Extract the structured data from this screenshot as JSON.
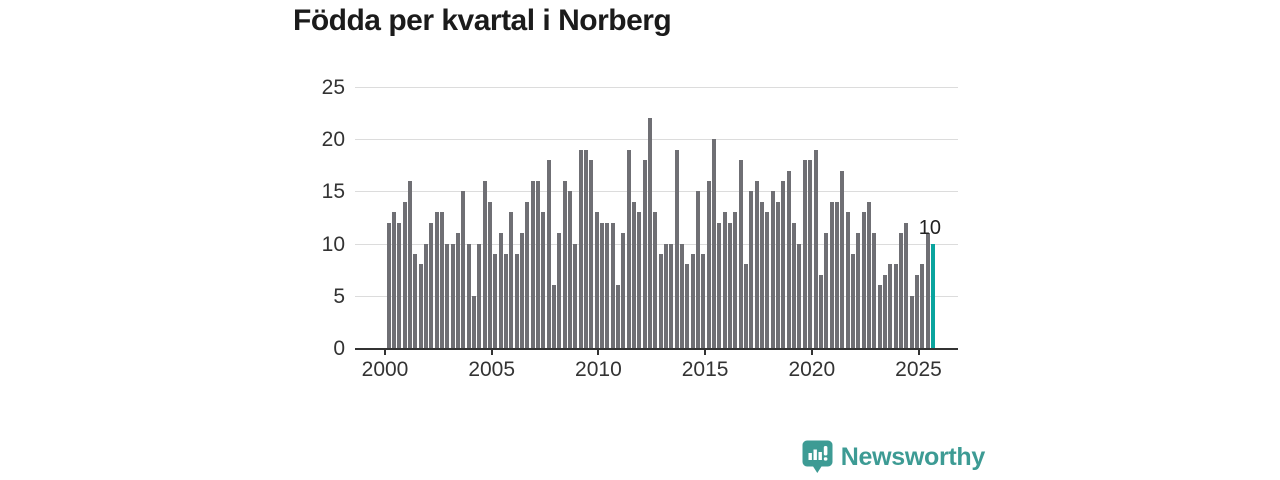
{
  "title": "Födda per kvartal i Norberg",
  "chart_data": {
    "type": "bar",
    "title": "Födda per kvartal i Norberg",
    "x_start": "2000-Q1",
    "x_end": "2025-Q3",
    "x_unit": "quarter",
    "values": [
      12,
      13,
      12,
      14,
      16,
      9,
      8,
      10,
      12,
      13,
      13,
      10,
      10,
      11,
      15,
      10,
      5,
      10,
      16,
      14,
      9,
      11,
      9,
      13,
      9,
      11,
      14,
      16,
      16,
      13,
      18,
      6,
      11,
      16,
      15,
      10,
      19,
      19,
      18,
      13,
      12,
      12,
      12,
      6,
      11,
      19,
      14,
      13,
      18,
      22,
      13,
      9,
      10,
      10,
      19,
      10,
      8,
      9,
      15,
      9,
      16,
      20,
      12,
      13,
      12,
      13,
      18,
      8,
      15,
      16,
      14,
      13,
      15,
      14,
      16,
      17,
      12,
      10,
      18,
      18,
      19,
      7,
      11,
      14,
      14,
      17,
      13,
      9,
      11,
      13,
      14,
      11,
      6,
      7,
      8,
      8,
      11,
      12,
      5,
      7,
      8,
      11,
      10
    ],
    "highlight": {
      "index": 102,
      "label": "10",
      "quarter": "2025-Q3",
      "value": 10
    },
    "yticks": [
      0,
      5,
      10,
      15,
      20,
      25
    ],
    "ylim": [
      0,
      25
    ],
    "xticks": [
      2000,
      2005,
      2010,
      2015,
      2020,
      2025
    ],
    "xlabel": "",
    "ylabel": "",
    "grid": "horizontal",
    "legend": "none",
    "bar_color": "#6f6f74",
    "highlight_color": "#0aa49e",
    "gridline_color": "#dcdcdc",
    "axis_color": "#333333"
  },
  "branding": {
    "logo_text": "Newsworthy",
    "logo_color": "#3d9b94",
    "logo_icon": "speech-bubble-bar-chart"
  }
}
